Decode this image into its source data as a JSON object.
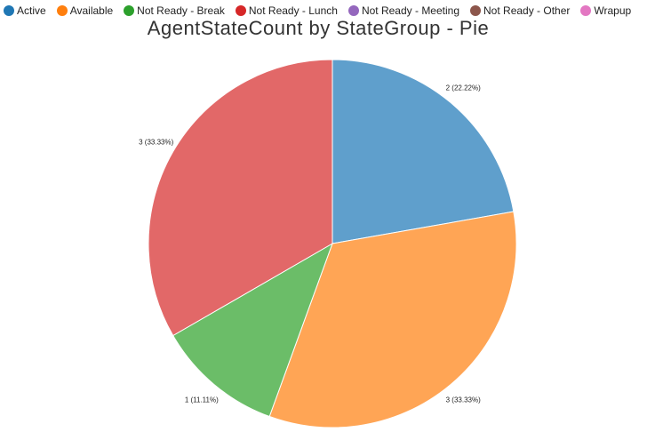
{
  "legend": [
    {
      "label": "Active",
      "color": "#1f77b4"
    },
    {
      "label": "Available",
      "color": "#ff7f0e"
    },
    {
      "label": "Not Ready - Break",
      "color": "#2ca02c"
    },
    {
      "label": "Not Ready - Lunch",
      "color": "#d62728"
    },
    {
      "label": "Not Ready - Meeting",
      "color": "#9467bd"
    },
    {
      "label": "Not Ready - Other",
      "color": "#8c564b"
    },
    {
      "label": "Wrapup",
      "color": "#e377c2"
    }
  ],
  "chart_data": {
    "type": "pie",
    "title": "AgentStateCount by StateGroup - Pie",
    "legend_position": "top-left",
    "slices": [
      {
        "category": "Active",
        "value": 2,
        "percent": "22.22%",
        "label": "2 (22.22%)",
        "color": "#5f9fcc"
      },
      {
        "category": "Available",
        "value": 3,
        "percent": "33.33%",
        "label": "3 (33.33%)",
        "color": "#ffa555"
      },
      {
        "category": "Not Ready - Break",
        "value": 1,
        "percent": "11.11%",
        "label": "1 (11.11%)",
        "color": "#6bbd68"
      },
      {
        "category": "Not Ready - Lunch",
        "value": 3,
        "percent": "33.33%",
        "label": "3 (33.33%)",
        "color": "#e26868"
      }
    ]
  }
}
